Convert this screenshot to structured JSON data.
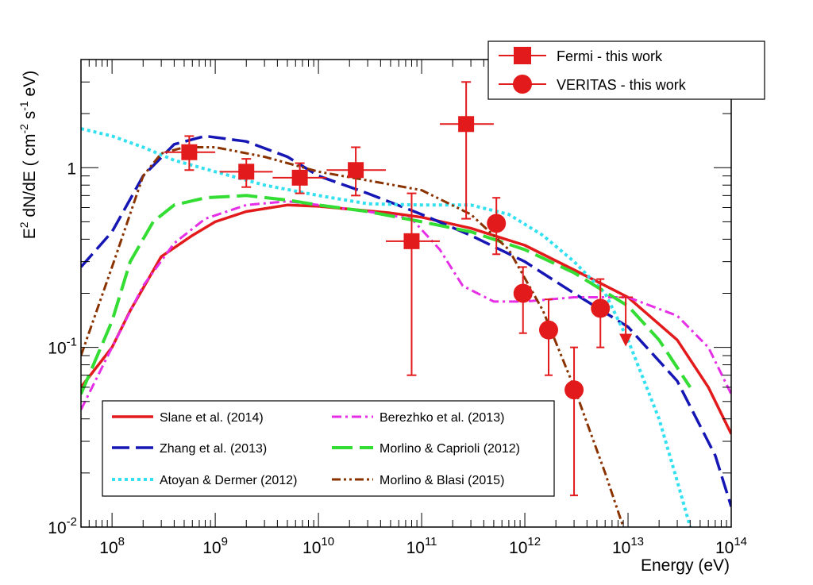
{
  "chart_data": {
    "type": "scatter",
    "title": "",
    "xlabel": "Energy (eV)",
    "ylabel": {
      "base": "E",
      "sup": "2",
      "rest": " dN/dE ( cm",
      "sup2": "-2",
      "mid": " s",
      "sup3": "-1",
      "end": " eV)"
    },
    "x_scale": "log",
    "y_scale": "log",
    "xlim": [
      50000000,
      100000000000000
    ],
    "ylim": [
      0.01,
      4
    ],
    "x_ticks": [
      {
        "value": 100000000,
        "base": "10",
        "exp": "8"
      },
      {
        "value": 1000000000,
        "base": "10",
        "exp": "9"
      },
      {
        "value": 10000000000,
        "base": "10",
        "exp": "10"
      },
      {
        "value": 100000000000,
        "base": "10",
        "exp": "11"
      },
      {
        "value": 1000000000000,
        "base": "10",
        "exp": "12"
      },
      {
        "value": 10000000000000,
        "base": "10",
        "exp": "13"
      },
      {
        "value": 100000000000000,
        "base": "10",
        "exp": "14"
      }
    ],
    "y_ticks": [
      {
        "value": 1,
        "base": "1",
        "exp": ""
      },
      {
        "value": 0.1,
        "base": "10",
        "exp": "-1"
      },
      {
        "value": 0.01,
        "base": "10",
        "exp": "-2"
      }
    ],
    "grid": false,
    "legend_top": {
      "placement": "top-right",
      "entries": [
        {
          "label": "Fermi - this work",
          "marker": "square",
          "color": "#e31a1c"
        },
        {
          "label": "VERITAS - this work",
          "marker": "circle",
          "color": "#e31a1c"
        }
      ]
    },
    "legend_models": {
      "placement": "bottom-left",
      "entries": [
        {
          "label": "Slane et al. (2014)",
          "series": 0
        },
        {
          "label": "Berezhko et al. (2013)",
          "series": 3
        },
        {
          "label": "Zhang et al. (2013)",
          "series": 1
        },
        {
          "label": "Morlino & Caprioli (2012)",
          "series": 4
        },
        {
          "label": "Atoyan & Dermer (2012)",
          "series": 2
        },
        {
          "label": "Morlino & Blasi (2015)",
          "series": 5
        }
      ]
    },
    "series": [
      {
        "name": "Slane et al. (2014)",
        "color": "#e31a1c",
        "dash": "",
        "width": 3.5,
        "points": [
          [
            50000000,
            0.06
          ],
          [
            100000000,
            0.1
          ],
          [
            150000000,
            0.16
          ],
          [
            300000000,
            0.32
          ],
          [
            600000000,
            0.42
          ],
          [
            1000000000,
            0.5
          ],
          [
            2000000000,
            0.57
          ],
          [
            5000000000,
            0.62
          ],
          [
            10000000000,
            0.61
          ],
          [
            50000000000,
            0.56
          ],
          [
            100000000000,
            0.53
          ],
          [
            300000000000,
            0.46
          ],
          [
            1000000000000,
            0.37
          ],
          [
            3000000000000,
            0.27
          ],
          [
            10000000000000,
            0.19
          ],
          [
            30000000000000,
            0.11
          ],
          [
            60000000000000,
            0.06
          ],
          [
            100000000000000,
            0.033
          ]
        ]
      },
      {
        "name": "Zhang et al. (2013)",
        "color": "#1616b4",
        "dash": "22,8",
        "width": 3.5,
        "points": [
          [
            50000000,
            0.28
          ],
          [
            100000000,
            0.44
          ],
          [
            200000000,
            0.9
          ],
          [
            400000000,
            1.35
          ],
          [
            800000000,
            1.5
          ],
          [
            2000000000,
            1.4
          ],
          [
            5000000000,
            1.15
          ],
          [
            10000000000,
            0.9
          ],
          [
            30000000000,
            0.72
          ],
          [
            100000000000,
            0.55
          ],
          [
            300000000000,
            0.42
          ],
          [
            1000000000000,
            0.3
          ],
          [
            3000000000000,
            0.2
          ],
          [
            10000000000000,
            0.13
          ],
          [
            30000000000000,
            0.065
          ],
          [
            70000000000000,
            0.025
          ],
          [
            100000000000000,
            0.013
          ]
        ]
      },
      {
        "name": "Atoyan & Dermer (2012)",
        "color": "#33e0f0",
        "dash": "4,4",
        "width": 4,
        "points": [
          [
            50000000,
            1.65
          ],
          [
            100000000,
            1.5
          ],
          [
            200000000,
            1.3
          ],
          [
            400000000,
            1.1
          ],
          [
            1000000000,
            0.95
          ],
          [
            3000000000,
            0.8
          ],
          [
            10000000000,
            0.7
          ],
          [
            30000000000,
            0.63
          ],
          [
            100000000000,
            0.62
          ],
          [
            300000000000,
            0.62
          ],
          [
            700000000000,
            0.55
          ],
          [
            1500000000000,
            0.42
          ],
          [
            3000000000000,
            0.3
          ],
          [
            6000000000000,
            0.2
          ],
          [
            10000000000000,
            0.11
          ],
          [
            20000000000000,
            0.04
          ],
          [
            30000000000000,
            0.018
          ],
          [
            40000000000000,
            0.01
          ]
        ]
      },
      {
        "name": "Berezhko et al. (2013)",
        "color": "#e62ee6",
        "dash": "12,5,3,5",
        "width": 3,
        "points": [
          [
            50000000,
            0.045
          ],
          [
            100000000,
            0.1
          ],
          [
            200000000,
            0.22
          ],
          [
            400000000,
            0.38
          ],
          [
            800000000,
            0.52
          ],
          [
            2000000000,
            0.62
          ],
          [
            5000000000,
            0.65
          ],
          [
            10000000000,
            0.62
          ],
          [
            30000000000,
            0.57
          ],
          [
            80000000000,
            0.52
          ],
          [
            150000000000,
            0.35
          ],
          [
            250000000000,
            0.22
          ],
          [
            500000000000,
            0.18
          ],
          [
            1000000000000,
            0.18
          ],
          [
            3000000000000,
            0.19
          ],
          [
            10000000000000,
            0.19
          ],
          [
            30000000000000,
            0.15
          ],
          [
            60000000000000,
            0.1
          ],
          [
            100000000000000,
            0.055
          ]
        ]
      },
      {
        "name": "Morlino & Caprioli (2012)",
        "color": "#33dd33",
        "dash": "26,9",
        "width": 4,
        "points": [
          [
            50000000,
            0.055
          ],
          [
            100000000,
            0.14
          ],
          [
            150000000,
            0.3
          ],
          [
            250000000,
            0.5
          ],
          [
            400000000,
            0.62
          ],
          [
            800000000,
            0.68
          ],
          [
            2000000000,
            0.7
          ],
          [
            5000000000,
            0.66
          ],
          [
            10000000000,
            0.62
          ],
          [
            30000000000,
            0.57
          ],
          [
            100000000000,
            0.5
          ],
          [
            300000000000,
            0.44
          ],
          [
            1000000000000,
            0.35
          ],
          [
            3000000000000,
            0.26
          ],
          [
            10000000000000,
            0.17
          ],
          [
            20000000000000,
            0.11
          ],
          [
            40000000000000,
            0.06
          ]
        ]
      },
      {
        "name": "Morlino & Blasi (2015)",
        "color": "#8b3300",
        "dash": "11,4,3,4,3,4",
        "width": 3,
        "points": [
          [
            50000000,
            0.09
          ],
          [
            100000000,
            0.28
          ],
          [
            200000000,
            0.9
          ],
          [
            300000000,
            1.2
          ],
          [
            500000000,
            1.3
          ],
          [
            1000000000,
            1.3
          ],
          [
            3000000000,
            1.15
          ],
          [
            10000000000,
            0.95
          ],
          [
            30000000000,
            0.85
          ],
          [
            100000000000,
            0.75
          ],
          [
            300000000000,
            0.55
          ],
          [
            700000000000,
            0.35
          ],
          [
            1500000000000,
            0.16
          ],
          [
            3000000000000,
            0.06
          ],
          [
            6000000000000,
            0.02
          ],
          [
            9000000000000,
            0.01
          ]
        ]
      }
    ],
    "fermi_points": [
      {
        "x": 560000000,
        "y": 1.22,
        "xlo": 320000000,
        "xhi": 1000000000,
        "ylo": 0.97,
        "yhi": 1.5
      },
      {
        "x": 2000000000,
        "y": 0.95,
        "xlo": 1100000000,
        "xhi": 3600000000,
        "ylo": 0.78,
        "yhi": 1.12
      },
      {
        "x": 6600000000,
        "y": 0.88,
        "xlo": 3600000000,
        "xhi": 12000000000,
        "ylo": 0.72,
        "yhi": 1.06
      },
      {
        "x": 23000000000,
        "y": 0.97,
        "xlo": 12000000000,
        "xhi": 45000000000,
        "ylo": 0.7,
        "yhi": 1.3
      },
      {
        "x": 80000000000,
        "y": 0.39,
        "xlo": 45000000000,
        "xhi": 150000000000,
        "ylo": 0.07,
        "yhi": 0.72
      },
      {
        "x": 270000000000,
        "y": 1.75,
        "xlo": 150000000000,
        "xhi": 500000000000,
        "ylo": 0.52,
        "yhi": 3.0
      }
    ],
    "veritas_points": [
      {
        "x": 530000000000,
        "y": 0.49,
        "ylo": 0.33,
        "yhi": 0.68
      },
      {
        "x": 960000000000,
        "y": 0.2,
        "ylo": 0.12,
        "yhi": 0.28
      },
      {
        "x": 1700000000000,
        "y": 0.125,
        "ylo": 0.07,
        "yhi": 0.185
      },
      {
        "x": 3000000000000,
        "y": 0.058,
        "ylo": 0.015,
        "yhi": 0.1
      },
      {
        "x": 5400000000000,
        "y": 0.165,
        "ylo": 0.1,
        "yhi": 0.24
      }
    ],
    "upper_limits": [
      {
        "x": 9500000000000,
        "y": 0.19
      }
    ]
  }
}
